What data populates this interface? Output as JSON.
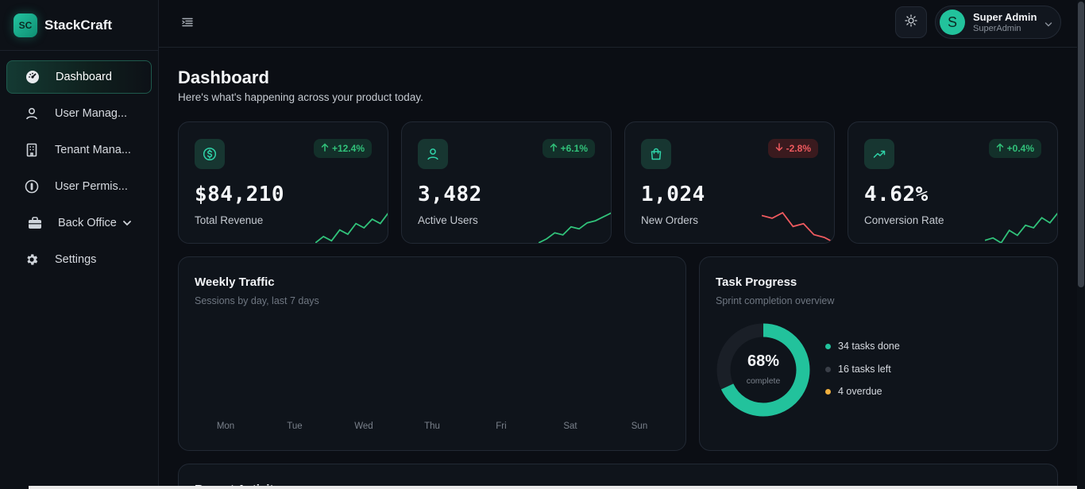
{
  "brand": {
    "logo": "SC",
    "name": "StackCraft"
  },
  "sidebar": {
    "items": [
      {
        "label": "Dashboard",
        "icon": "dashboard-gauge-icon",
        "active": true
      },
      {
        "label": "User Manag...",
        "icon": "user-icon"
      },
      {
        "label": "Tenant Mana...",
        "icon": "building-icon"
      },
      {
        "label": "User Permis...",
        "icon": "shield-lock-icon"
      },
      {
        "label": "Back Office",
        "icon": "briefcase-icon",
        "expandable": true
      },
      {
        "label": "Settings",
        "icon": "gear-icon"
      }
    ]
  },
  "topbar": {
    "user": {
      "initial": "S",
      "name": "Super Admin",
      "role": "SuperAdmin"
    }
  },
  "page": {
    "title": "Dashboard",
    "subtitle": "Here's what's happening across your product today."
  },
  "kpis": [
    {
      "value": "$84,210",
      "label": "Total Revenue",
      "change": "+12.4%",
      "direction": "up",
      "icon": "dollar-circle-icon",
      "trend": [
        2,
        5,
        3,
        8,
        6,
        11,
        9,
        13,
        11,
        16
      ]
    },
    {
      "value": "3,482",
      "label": "Active Users",
      "change": "+6.1%",
      "direction": "up",
      "icon": "user-icon",
      "trend": [
        2,
        4,
        7,
        6,
        10,
        9,
        12,
        13,
        15,
        17
      ]
    },
    {
      "value": "1,024",
      "label": "New Orders",
      "change": "-2.8%",
      "direction": "down",
      "icon": "shopping-bag-icon",
      "trend": [
        14,
        13,
        15,
        10,
        11,
        7,
        6,
        4
      ]
    },
    {
      "value": "4.62%",
      "label": "Conversion Rate",
      "change": "+0.4%",
      "direction": "up",
      "icon": "trending-up-icon",
      "trend": [
        3,
        4,
        2,
        7,
        5,
        9,
        8,
        12,
        10,
        14
      ]
    }
  ],
  "weekly": {
    "title": "Weekly Traffic",
    "subtitle": "Sessions by day, last 7 days",
    "days": [
      "Mon",
      "Tue",
      "Wed",
      "Thu",
      "Fri",
      "Sat",
      "Sun"
    ]
  },
  "tasks": {
    "title": "Task Progress",
    "subtitle": "Sprint completion overview",
    "percent": 68,
    "percent_label": "68%",
    "caption": "complete",
    "legend": [
      {
        "label": "34 tasks done",
        "color": "#22c29c"
      },
      {
        "label": "16 tasks left",
        "color": "#3a3f48"
      },
      {
        "label": "4 overdue",
        "color": "#f0b03e"
      }
    ]
  },
  "recent": {
    "title": "Recent Activity"
  },
  "colors": {
    "accent": "#22c29c",
    "up": "#31c27a",
    "down": "#ef5a5f"
  }
}
